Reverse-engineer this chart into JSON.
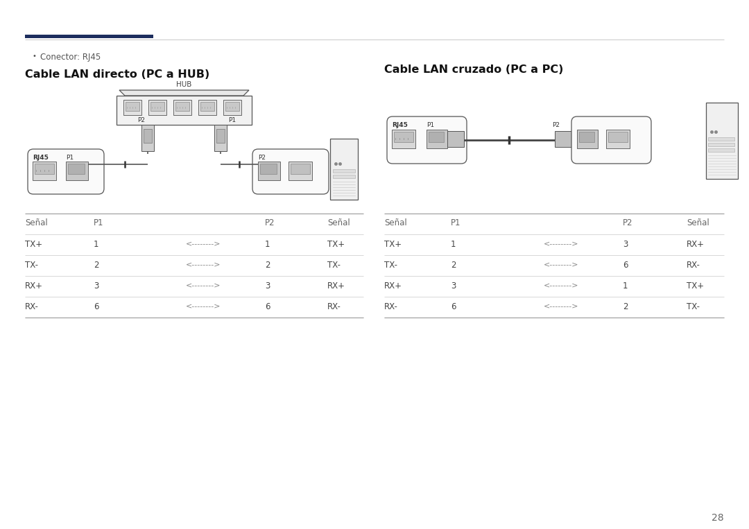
{
  "bg_color": "#ffffff",
  "header_navy_color": "#1d2e5e",
  "header_line_color": "#c8c8c8",
  "bullet_text": "Conector: RJ45",
  "left_title": "Cable LAN directo (PC a HUB)",
  "right_title": "Cable LAN cruzado (PC a PC)",
  "page_number": "28",
  "left_table_headers": [
    "Señal",
    "P1",
    "",
    "P2",
    "Señal"
  ],
  "left_table_rows": [
    [
      "TX+",
      "1",
      "<-------->",
      "1",
      "TX+"
    ],
    [
      "TX-",
      "2",
      "<-------->",
      "2",
      "TX-"
    ],
    [
      "RX+",
      "3",
      "<-------->",
      "3",
      "RX+"
    ],
    [
      "RX-",
      "6",
      "<-------->",
      "6",
      "RX-"
    ]
  ],
  "right_table_headers": [
    "Señal",
    "P1",
    "",
    "P2",
    "Señal"
  ],
  "right_table_rows": [
    [
      "TX+",
      "1",
      "<-------->",
      "3",
      "RX+"
    ],
    [
      "TX-",
      "2",
      "<-------->",
      "6",
      "RX-"
    ],
    [
      "RX+",
      "3",
      "<-------->",
      "1",
      "TX+"
    ],
    [
      "RX-",
      "6",
      "<-------->",
      "2",
      "TX-"
    ]
  ]
}
